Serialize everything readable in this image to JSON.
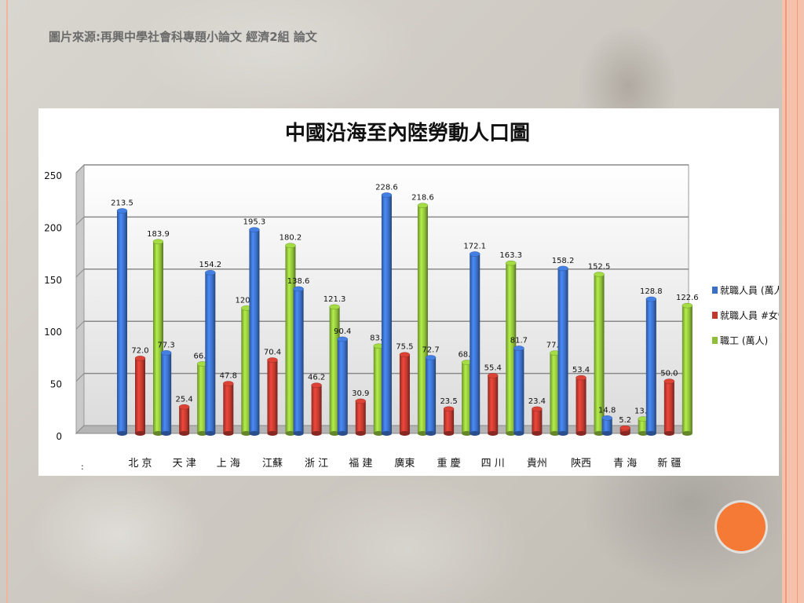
{
  "slide": {
    "caption": "圖片來源:再興中學社會科專題小論文 經濟2組 論文"
  },
  "colors": {
    "accent_circle": "#f47a36",
    "side_band": "#f6c1ab"
  },
  "chart_data": {
    "type": "bar",
    "title": "中國沿海至內陸勞動人口圖",
    "xlabel": "",
    "ylabel": "",
    "ylim": [
      0,
      250
    ],
    "yticks": [
      0,
      50,
      100,
      150,
      200,
      250
    ],
    "grid": true,
    "legend_placement": "right",
    "categories": [
      "北京",
      "天津",
      "上海",
      "江蘇",
      "浙江",
      "福建",
      "廣東",
      "重慶",
      "四川",
      "貴州",
      "陝西",
      "青海",
      "新疆"
    ],
    "category_labels": [
      "北 京",
      "天 津",
      "上 海",
      "江蘇",
      "浙 江",
      "福 建",
      "廣東",
      "重 慶",
      "四 川",
      "貴州",
      "陝西",
      "青 海",
      "新 疆"
    ],
    "series": [
      {
        "name": "就職人員 (萬人)",
        "color": "#3b6fc6",
        "values": [
          213.5,
          77.3,
          154.2,
          195.3,
          138.6,
          90.4,
          228.6,
          72.7,
          172.1,
          81.7,
          158.2,
          14.8,
          128.8
        ]
      },
      {
        "name": "就職人員 #女性",
        "color": "#c0392f",
        "values": [
          72.0,
          25.4,
          47.8,
          70.4,
          46.2,
          30.9,
          75.5,
          23.5,
          55.4,
          23.4,
          53.4,
          5.2,
          50.0
        ]
      },
      {
        "name": "職工 (萬人)",
        "color": "#8fbf3a",
        "values": [
          183.9,
          66.7,
          120.2,
          180.2,
          121.3,
          83.8,
          218.6,
          68.1,
          163.3,
          77.1,
          152.5,
          13.9,
          122.6
        ]
      }
    ],
    "axis_stray_label": ":"
  }
}
